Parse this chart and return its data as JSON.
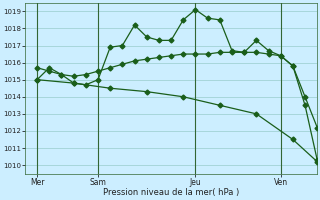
{
  "xlabel": "Pression niveau de la mer( hPa )",
  "bg_color": "#cceeff",
  "grid_color": "#99cccc",
  "line_color": "#1a5e1a",
  "vline_color": "#336633",
  "ylim": [
    1009.5,
    1019.5
  ],
  "xlim": [
    0,
    12
  ],
  "yticks": [
    1010,
    1011,
    1012,
    1013,
    1014,
    1015,
    1016,
    1017,
    1018,
    1019
  ],
  "day_labels": [
    "Mer",
    "Sam",
    "Jeu",
    "Ven"
  ],
  "day_positions": [
    0.5,
    3.0,
    7.0,
    10.5
  ],
  "vline_positions": [
    0.5,
    3.0,
    7.0,
    10.5
  ],
  "series1_x": [
    0.5,
    1.0,
    1.5,
    2.0,
    2.5,
    3.0,
    3.5,
    4.0,
    4.5,
    5.0,
    5.5,
    6.0,
    6.5,
    7.0,
    7.5,
    8.0,
    8.5,
    9.0,
    9.5,
    10.0,
    10.5,
    11.0,
    11.5,
    12.0
  ],
  "series1_y": [
    1015.0,
    1015.7,
    1015.3,
    1014.8,
    1014.7,
    1015.0,
    1016.9,
    1017.0,
    1018.2,
    1017.5,
    1017.3,
    1017.3,
    1018.5,
    1019.1,
    1018.6,
    1018.5,
    1016.7,
    1016.6,
    1017.3,
    1016.7,
    1016.4,
    1015.8,
    1013.5,
    1010.3
  ],
  "series2_x": [
    0.5,
    1.0,
    1.5,
    2.0,
    2.5,
    3.0,
    3.5,
    4.0,
    4.5,
    5.0,
    5.5,
    6.0,
    6.5,
    7.0,
    7.5,
    8.0,
    8.5,
    9.0,
    9.5,
    10.0,
    10.5,
    11.0,
    11.5,
    12.0
  ],
  "series2_y": [
    1015.7,
    1015.5,
    1015.3,
    1015.2,
    1015.3,
    1015.5,
    1015.7,
    1015.9,
    1016.1,
    1016.2,
    1016.3,
    1016.4,
    1016.5,
    1016.5,
    1016.5,
    1016.6,
    1016.6,
    1016.6,
    1016.6,
    1016.5,
    1016.4,
    1015.8,
    1014.0,
    1012.2
  ],
  "series3_x": [
    0.5,
    2.0,
    3.5,
    5.0,
    6.5,
    8.0,
    9.5,
    11.0,
    12.0
  ],
  "series3_y": [
    1015.0,
    1014.8,
    1014.5,
    1014.3,
    1014.0,
    1013.5,
    1013.0,
    1011.5,
    1010.2
  ],
  "marker_size": 2.5,
  "linewidth": 0.9
}
